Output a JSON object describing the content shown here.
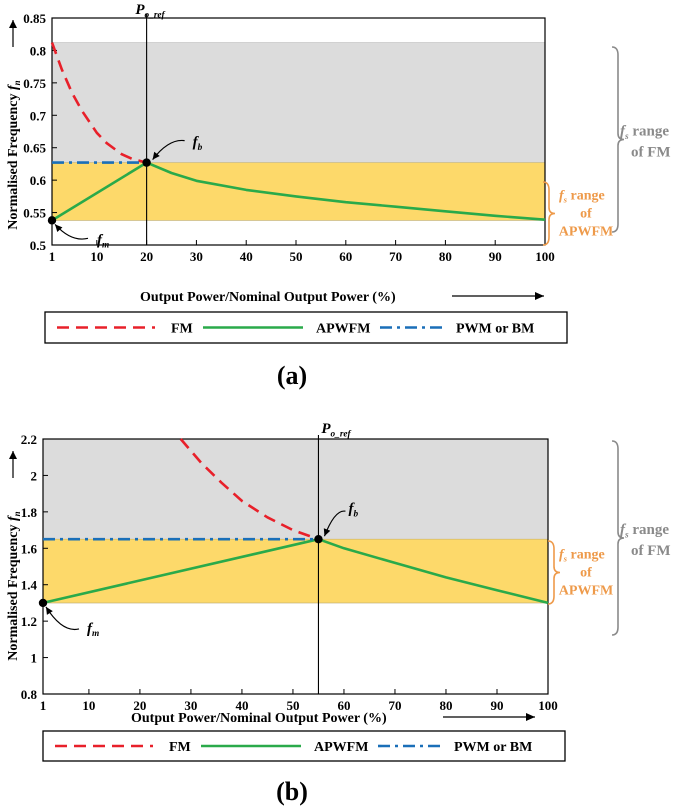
{
  "chart_data": [
    {
      "type": "line",
      "panel_label": "(a)",
      "xlabel": "Output Power/Nominal Output Power (%)",
      "ylabel": "Normalised Frequency",
      "ylabel_symbol": "f",
      "ylabel_sub": "n",
      "xlim": [
        1,
        100
      ],
      "ylim": [
        0.5,
        0.85
      ],
      "xticks": [
        1,
        10,
        20,
        30,
        40,
        50,
        60,
        70,
        80,
        90,
        100
      ],
      "yticks": [
        0.5,
        0.55,
        0.6,
        0.65,
        0.7,
        0.75,
        0.8,
        0.85
      ],
      "ytick_labels": [
        "0.5",
        "0.55",
        "0.6",
        "0.65",
        "0.7",
        "0.75",
        "0.8",
        "0.85"
      ],
      "p_ref": 20,
      "p_ref_label": "P",
      "p_ref_sub": "o_ref",
      "fm_band": [
        0.538,
        0.812
      ],
      "apwfm_band": [
        0.538,
        0.627
      ],
      "series": [
        {
          "name": "FM",
          "color": "#e8202a",
          "style": "dashed",
          "x": [
            1,
            3,
            5,
            7,
            10,
            12,
            15,
            17,
            20
          ],
          "y": [
            0.812,
            0.77,
            0.735,
            0.707,
            0.673,
            0.657,
            0.64,
            0.633,
            0.627
          ]
        },
        {
          "name": "APWFM",
          "color": "#2aaa4a",
          "style": "solid",
          "x": [
            1,
            20,
            25,
            30,
            40,
            50,
            60,
            70,
            80,
            90,
            100
          ],
          "y": [
            0.538,
            0.627,
            0.611,
            0.599,
            0.585,
            0.575,
            0.566,
            0.559,
            0.552,
            0.545,
            0.539
          ]
        },
        {
          "name": "PWM or BM",
          "color": "#1a6fb8",
          "style": "dashdot",
          "x": [
            1,
            20
          ],
          "y": [
            0.627,
            0.627
          ]
        }
      ],
      "markers": [
        {
          "label": "f",
          "sub": "b",
          "x": 20,
          "y": 0.627
        },
        {
          "label": "f",
          "sub": "m",
          "x": 1,
          "y": 0.538
        }
      ],
      "annotations": {
        "fs_fm": {
          "symbol": "f",
          "sub": "s",
          "line1": "range",
          "line2": "of FM"
        },
        "fs_apwfm": {
          "symbol": "f",
          "sub": "s",
          "line1": "range",
          "line2": "of",
          "line3": "APWFM"
        }
      },
      "legend": [
        "FM",
        "APWFM",
        "PWM or BM"
      ]
    },
    {
      "type": "line",
      "panel_label": "(b)",
      "xlabel": "Output Power/Nominal Output Power (%)",
      "ylabel": "Normalised Frequency",
      "ylabel_symbol": "f",
      "ylabel_sub": "n",
      "xlim": [
        1,
        100
      ],
      "ylim": [
        0.8,
        2.2
      ],
      "xticks": [
        1,
        10,
        20,
        30,
        40,
        50,
        60,
        70,
        80,
        90,
        100
      ],
      "yticks": [
        0.8,
        1.0,
        1.2,
        1.4,
        1.6,
        1.8,
        2.0,
        2.2
      ],
      "ytick_labels": [
        "0.8",
        "1",
        "1.2",
        "1.4",
        "1.6",
        "1.8",
        "2",
        "2.2"
      ],
      "p_ref": 55,
      "p_ref_label": "P",
      "p_ref_sub": "o_ref",
      "fm_band": [
        1.3,
        2.2
      ],
      "apwfm_band": [
        1.3,
        1.65
      ],
      "series": [
        {
          "name": "FM",
          "color": "#e8202a",
          "style": "dashed",
          "x": [
            28,
            32,
            36,
            40,
            45,
            50,
            55
          ],
          "y": [
            2.2,
            2.07,
            1.96,
            1.86,
            1.77,
            1.7,
            1.65
          ]
        },
        {
          "name": "APWFM",
          "color": "#2aaa4a",
          "style": "solid",
          "x": [
            1,
            55,
            60,
            70,
            80,
            90,
            100
          ],
          "y": [
            1.3,
            1.65,
            1.6,
            1.52,
            1.44,
            1.37,
            1.3
          ]
        },
        {
          "name": "PWM or BM",
          "color": "#1a6fb8",
          "style": "dashdot",
          "x": [
            1,
            55
          ],
          "y": [
            1.65,
            1.65
          ]
        }
      ],
      "markers": [
        {
          "label": "f",
          "sub": "b",
          "x": 55,
          "y": 1.65
        },
        {
          "label": "f",
          "sub": "m",
          "x": 1,
          "y": 1.3
        }
      ],
      "annotations": {
        "fs_fm": {
          "symbol": "f",
          "sub": "s",
          "line1": "range",
          "line2": "of FM"
        },
        "fs_apwfm": {
          "symbol": "f",
          "sub": "s",
          "line1": "range",
          "line2": "of",
          "line3": "APWFM"
        }
      },
      "legend": [
        "FM",
        "APWFM",
        "PWM or BM"
      ]
    }
  ],
  "colors": {
    "fm_band": "#dcdcdc",
    "apwfm_band": "#fdd96a",
    "fs_fm_text": "#8a8a8a",
    "fs_apwfm_text": "#ee9a4a"
  }
}
